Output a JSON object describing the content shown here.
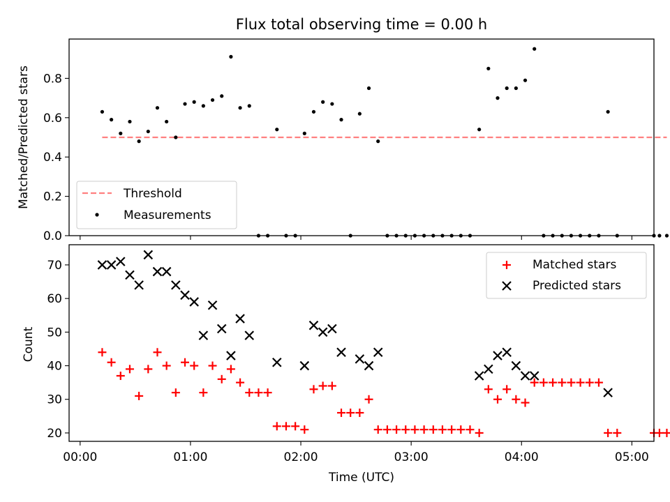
{
  "chart_data": [
    {
      "type": "scatter",
      "title": "Flux total observing time = 0.00 h",
      "xlabel": "",
      "ylabel": "Matched/Predicted stars",
      "ylim": [
        0,
        1.0
      ],
      "xlim_minutes": [
        -6,
        312
      ],
      "yticks": [
        {
          "value": 0.0,
          "label": "0.0"
        },
        {
          "value": 0.2,
          "label": "0.2"
        },
        {
          "value": 0.4,
          "label": "0.4"
        },
        {
          "value": 0.6,
          "label": "0.6"
        },
        {
          "value": 0.8,
          "label": "0.8"
        }
      ],
      "legend": {
        "location": "lower-left",
        "entries": [
          "Threshold",
          "Measurements"
        ]
      },
      "threshold": {
        "name": "Threshold",
        "y": 0.5,
        "x_start_minutes": 12,
        "x_end_minutes": 319,
        "color": "#ff7f7f",
        "style": "dashed"
      },
      "series": [
        {
          "name": "Measurements",
          "color": "#000000",
          "marker": "dot",
          "points": [
            [
              12,
              0.63
            ],
            [
              17,
              0.59
            ],
            [
              22,
              0.52
            ],
            [
              27,
              0.58
            ],
            [
              32,
              0.48
            ],
            [
              37,
              0.53
            ],
            [
              42,
              0.65
            ],
            [
              47,
              0.58
            ],
            [
              52,
              0.5
            ],
            [
              57,
              0.67
            ],
            [
              62,
              0.68
            ],
            [
              67,
              0.66
            ],
            [
              72,
              0.69
            ],
            [
              77,
              0.71
            ],
            [
              82,
              0.91
            ],
            [
              87,
              0.65
            ],
            [
              92,
              0.66
            ],
            [
              97,
              0.0
            ],
            [
              102,
              0.0
            ],
            [
              107,
              0.54
            ],
            [
              112,
              0.0
            ],
            [
              117,
              0.0
            ],
            [
              122,
              0.52
            ],
            [
              127,
              0.63
            ],
            [
              132,
              0.68
            ],
            [
              137,
              0.67
            ],
            [
              142,
              0.59
            ],
            [
              147,
              0.0
            ],
            [
              152,
              0.62
            ],
            [
              157,
              0.75
            ],
            [
              162,
              0.48
            ],
            [
              167,
              0.0
            ],
            [
              172,
              0.0
            ],
            [
              177,
              0.0
            ],
            [
              182,
              0.0
            ],
            [
              187,
              0.0
            ],
            [
              192,
              0.0
            ],
            [
              197,
              0.0
            ],
            [
              202,
              0.0
            ],
            [
              207,
              0.0
            ],
            [
              212,
              0.0
            ],
            [
              217,
              0.54
            ],
            [
              222,
              0.85
            ],
            [
              227,
              0.7
            ],
            [
              232,
              0.75
            ],
            [
              237,
              0.75
            ],
            [
              242,
              0.79
            ],
            [
              247,
              0.95
            ],
            [
              252,
              0.0
            ],
            [
              257,
              0.0
            ],
            [
              262,
              0.0
            ],
            [
              267,
              0.0
            ],
            [
              272,
              0.0
            ],
            [
              277,
              0.0
            ],
            [
              282,
              0.0
            ],
            [
              287,
              0.63
            ],
            [
              292,
              0.0
            ],
            [
              312,
              0.0
            ],
            [
              315,
              0.0
            ],
            [
              319,
              0.0
            ]
          ]
        }
      ]
    },
    {
      "type": "scatter",
      "title": "",
      "xlabel": "Time (UTC)",
      "ylabel": "Count",
      "ylim": [
        17.5,
        76
      ],
      "xlim_minutes": [
        -6,
        312
      ],
      "xticks": [
        {
          "minutes": 0,
          "label": "00:00"
        },
        {
          "minutes": 60,
          "label": "01:00"
        },
        {
          "minutes": 120,
          "label": "02:00"
        },
        {
          "minutes": 180,
          "label": "03:00"
        },
        {
          "minutes": 240,
          "label": "04:00"
        },
        {
          "minutes": 300,
          "label": "05:00"
        }
      ],
      "yticks": [
        {
          "value": 20,
          "label": "20"
        },
        {
          "value": 30,
          "label": "30"
        },
        {
          "value": 40,
          "label": "40"
        },
        {
          "value": 50,
          "label": "50"
        },
        {
          "value": 60,
          "label": "60"
        },
        {
          "value": 70,
          "label": "70"
        }
      ],
      "legend": {
        "location": "top-right",
        "entries": [
          "Matched stars",
          "Predicted stars"
        ]
      },
      "series": [
        {
          "name": "Matched stars",
          "color": "#ff0000",
          "marker": "plus",
          "points": [
            [
              12,
              44
            ],
            [
              17,
              41
            ],
            [
              22,
              37
            ],
            [
              27,
              39
            ],
            [
              32,
              31
            ],
            [
              37,
              39
            ],
            [
              42,
              44
            ],
            [
              47,
              40
            ],
            [
              52,
              32
            ],
            [
              57,
              41
            ],
            [
              62,
              40
            ],
            [
              67,
              32
            ],
            [
              72,
              40
            ],
            [
              77,
              36
            ],
            [
              82,
              39
            ],
            [
              87,
              35
            ],
            [
              92,
              32
            ],
            [
              97,
              32
            ],
            [
              102,
              32
            ],
            [
              107,
              22
            ],
            [
              112,
              22
            ],
            [
              117,
              22
            ],
            [
              122,
              21
            ],
            [
              127,
              33
            ],
            [
              132,
              34
            ],
            [
              137,
              34
            ],
            [
              142,
              26
            ],
            [
              147,
              26
            ],
            [
              152,
              26
            ],
            [
              157,
              30
            ],
            [
              162,
              21
            ],
            [
              167,
              21
            ],
            [
              172,
              21
            ],
            [
              177,
              21
            ],
            [
              182,
              21
            ],
            [
              187,
              21
            ],
            [
              192,
              21
            ],
            [
              197,
              21
            ],
            [
              202,
              21
            ],
            [
              207,
              21
            ],
            [
              212,
              21
            ],
            [
              217,
              20
            ],
            [
              222,
              33
            ],
            [
              227,
              30
            ],
            [
              232,
              33
            ],
            [
              237,
              30
            ],
            [
              242,
              29
            ],
            [
              247,
              35
            ],
            [
              252,
              35
            ],
            [
              257,
              35
            ],
            [
              262,
              35
            ],
            [
              267,
              35
            ],
            [
              272,
              35
            ],
            [
              277,
              35
            ],
            [
              282,
              35
            ],
            [
              287,
              20
            ],
            [
              292,
              20
            ],
            [
              312,
              20
            ],
            [
              315,
              20
            ],
            [
              319,
              20
            ]
          ]
        },
        {
          "name": "Predicted stars",
          "color": "#000000",
          "marker": "x",
          "points": [
            [
              12,
              70
            ],
            [
              17,
              70
            ],
            [
              22,
              71
            ],
            [
              27,
              67
            ],
            [
              32,
              64
            ],
            [
              37,
              73
            ],
            [
              42,
              68
            ],
            [
              47,
              68
            ],
            [
              52,
              64
            ],
            [
              57,
              61
            ],
            [
              62,
              59
            ],
            [
              67,
              49
            ],
            [
              72,
              58
            ],
            [
              77,
              51
            ],
            [
              82,
              43
            ],
            [
              87,
              54
            ],
            [
              92,
              49
            ],
            [
              107,
              41
            ],
            [
              122,
              40
            ],
            [
              127,
              52
            ],
            [
              132,
              50
            ],
            [
              137,
              51
            ],
            [
              142,
              44
            ],
            [
              152,
              42
            ],
            [
              157,
              40
            ],
            [
              162,
              44
            ],
            [
              217,
              37
            ],
            [
              222,
              39
            ],
            [
              227,
              43
            ],
            [
              232,
              44
            ],
            [
              237,
              40
            ],
            [
              242,
              37
            ],
            [
              247,
              37
            ],
            [
              287,
              32
            ]
          ]
        }
      ]
    }
  ]
}
